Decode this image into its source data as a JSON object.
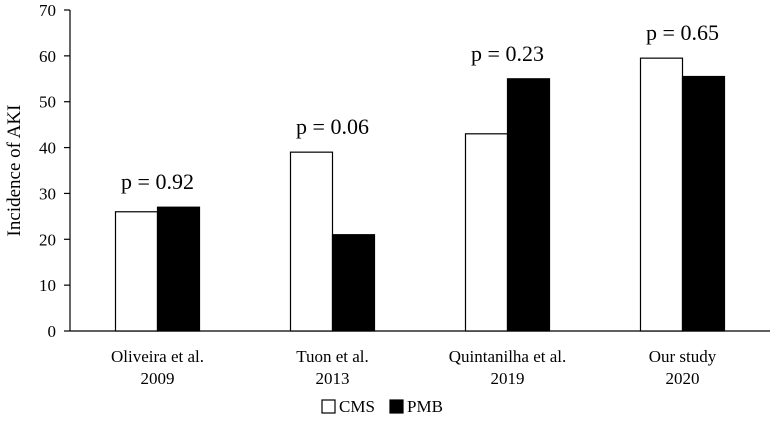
{
  "chart_data": {
    "type": "bar",
    "title": "",
    "xlabel": "",
    "ylabel": "Incidence of AKI",
    "ylim": [
      0,
      70
    ],
    "yticks": [
      0,
      10,
      20,
      30,
      40,
      50,
      60,
      70
    ],
    "grid": false,
    "legend": "bottom-center",
    "categories": [
      [
        "Oliveira et al.",
        "2009"
      ],
      [
        "Tuon et al.",
        "2013"
      ],
      [
        "Quintanilha et al.",
        "2019"
      ],
      [
        "Our study",
        "2020"
      ]
    ],
    "series": [
      {
        "name": "CMS",
        "color": "#ffffff",
        "values": [
          26,
          39,
          43,
          59.5
        ]
      },
      {
        "name": "PMB",
        "color": "#000000",
        "values": [
          27,
          21,
          55,
          55.5
        ]
      }
    ],
    "annotations": [
      "p = 0.92",
      "p = 0.06",
      "p = 0.23",
      "p = 0.65"
    ]
  }
}
